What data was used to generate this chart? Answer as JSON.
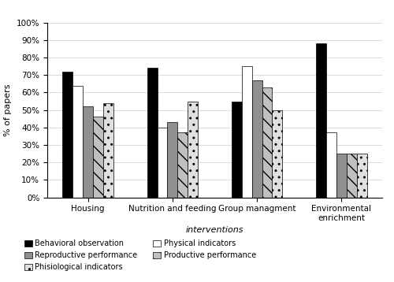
{
  "categories": [
    "Housing",
    "Nutrition and feeding",
    "Group managment",
    "Environmental\nenrichment"
  ],
  "series": {
    "Behavioral observation": [
      72,
      74,
      55,
      88
    ],
    "Physical indicators": [
      64,
      40,
      75,
      37
    ],
    "Reproductive performance": [
      52,
      43,
      67,
      25
    ],
    "Productive performance": [
      46,
      37,
      63,
      25
    ],
    "Phisiological indicators": [
      54,
      55,
      50,
      25
    ]
  },
  "bar_styles": [
    {
      "color": "#000000",
      "hatch": "",
      "edgecolor": "#000000"
    },
    {
      "color": "#ffffff",
      "hatch": "",
      "edgecolor": "#000000"
    },
    {
      "color": "#909090",
      "hatch": "",
      "edgecolor": "#000000"
    },
    {
      "color": "#c0c0c0",
      "hatch": "\\\\",
      "edgecolor": "#000000"
    },
    {
      "color": "#e0e0e0",
      "hatch": "..",
      "edgecolor": "#000000"
    }
  ],
  "series_names": [
    "Behavioral observation",
    "Physical indicators",
    "Reproductive performance",
    "Productive performance",
    "Phisiological indicators"
  ],
  "ylabel": "% of papers",
  "xlabel": "interventions",
  "ylim": [
    0,
    100
  ],
  "ytick_labels": [
    "0%",
    "10%",
    "20%",
    "30%",
    "40%",
    "50%",
    "60%",
    "70%",
    "80%",
    "90%",
    "100%"
  ],
  "ytick_values": [
    0,
    10,
    20,
    30,
    40,
    50,
    60,
    70,
    80,
    90,
    100
  ],
  "bar_width": 0.12,
  "figsize": [
    5.0,
    3.58
  ],
  "dpi": 100
}
